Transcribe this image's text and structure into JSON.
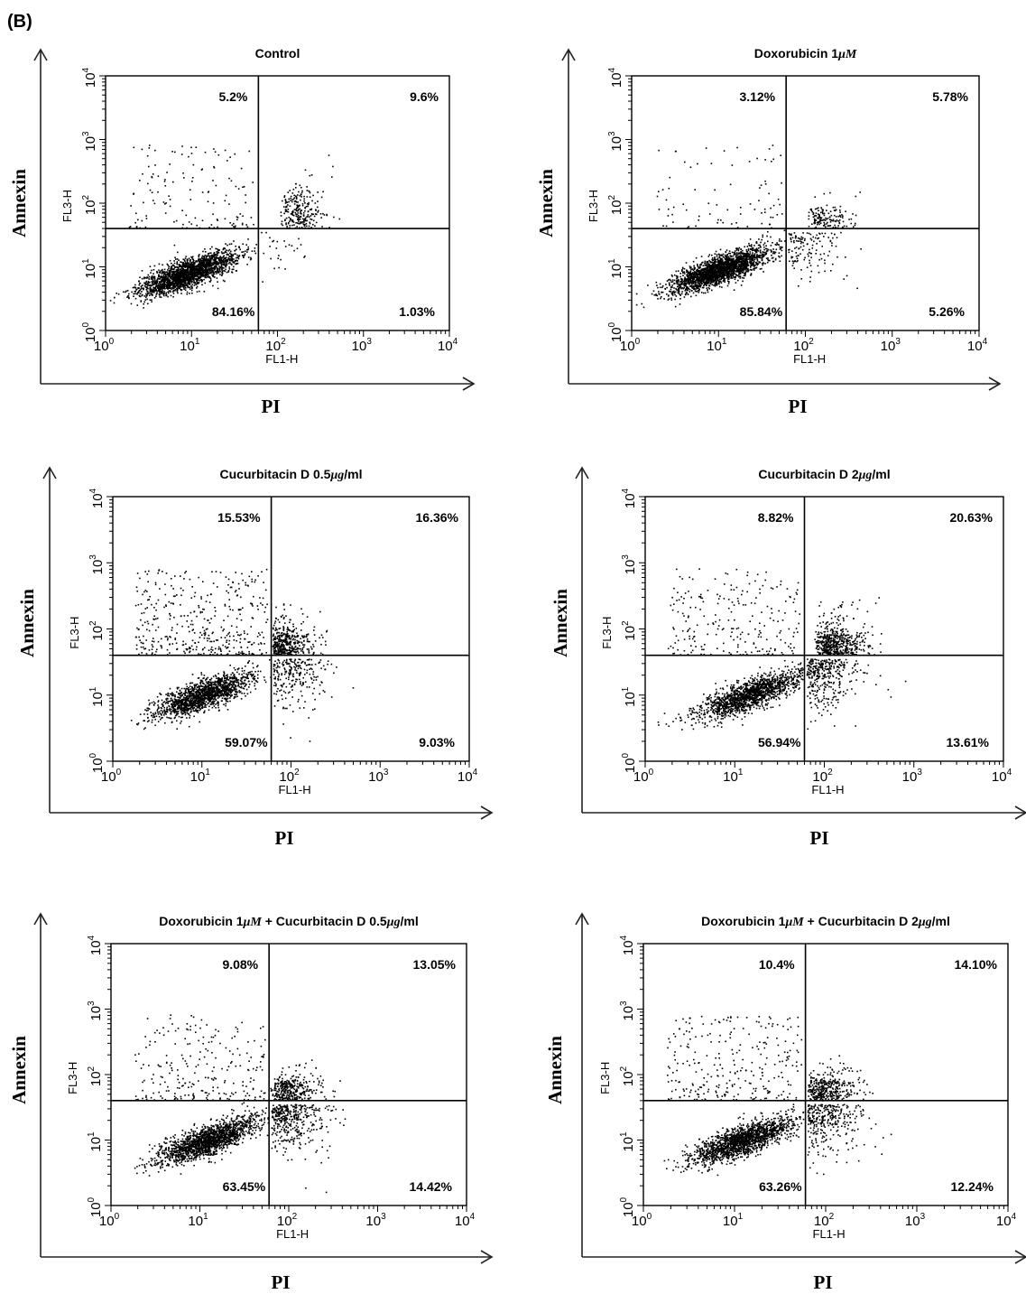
{
  "panel_label": "(B)",
  "chart_data": [
    {
      "type": "scatter",
      "title": "Control",
      "xlabel": "FL1-H",
      "ylabel": "FL3-H",
      "outer_xlabel": "PI",
      "outer_ylabel": "Annexin",
      "xscale": "log",
      "yscale": "log",
      "xlim": [
        1,
        10000
      ],
      "ylim": [
        1,
        10000
      ],
      "x_ticks": [
        "10^0",
        "10^1",
        "10^2",
        "10^3",
        "10^4"
      ],
      "y_ticks": [
        "10^0",
        "10^1",
        "10^2",
        "10^3",
        "10^4"
      ],
      "gate": {
        "x": 60,
        "y": 40
      },
      "quadrants": {
        "upper_left": "5.2%",
        "upper_right": "9.6%",
        "lower_left": "84.16%",
        "lower_right": "1.03%"
      },
      "cluster_center": {
        "x": 9,
        "y": 8
      },
      "upper_right_spread": {
        "x": 200,
        "y": 120
      }
    },
    {
      "type": "scatter",
      "title": "Doxorubicin 1μM",
      "xlabel": "FL1-H",
      "ylabel": "FL3-H",
      "outer_xlabel": "PI",
      "outer_ylabel": "Annexin",
      "xscale": "log",
      "yscale": "log",
      "xlim": [
        1,
        10000
      ],
      "ylim": [
        1,
        10000
      ],
      "x_ticks": [
        "10^0",
        "10^1",
        "10^2",
        "10^3",
        "10^4"
      ],
      "y_ticks": [
        "10^0",
        "10^1",
        "10^2",
        "10^3",
        "10^4"
      ],
      "gate": {
        "x": 60,
        "y": 40
      },
      "quadrants": {
        "upper_left": "3.12%",
        "upper_right": "5.78%",
        "lower_left": "85.84%",
        "lower_right": "5.26%"
      },
      "cluster_center": {
        "x": 10,
        "y": 9
      },
      "upper_right_spread": {
        "x": 200,
        "y": 60
      }
    },
    {
      "type": "scatter",
      "title": "Cucurbitacin D 0.5μg/ml",
      "xlabel": "FL1-H",
      "ylabel": "FL3-H",
      "outer_xlabel": "PI",
      "outer_ylabel": "Annexin",
      "xscale": "log",
      "yscale": "log",
      "xlim": [
        1,
        10000
      ],
      "ylim": [
        1,
        10000
      ],
      "x_ticks": [
        "10^0",
        "10^1",
        "10^2",
        "10^3",
        "10^4"
      ],
      "y_ticks": [
        "10^0",
        "10^1",
        "10^2",
        "10^3",
        "10^4"
      ],
      "gate": {
        "x": 60,
        "y": 40
      },
      "quadrants": {
        "upper_left": "15.53%",
        "upper_right": "16.36%",
        "lower_left": "59.07%",
        "lower_right": "9.03%"
      },
      "cluster_center": {
        "x": 10,
        "y": 10
      },
      "upper_right_spread": {
        "x": 100,
        "y": 80
      }
    },
    {
      "type": "scatter",
      "title": "Cucurbitacin D 2μg/ml",
      "xlabel": "FL1-H",
      "ylabel": "FL3-H",
      "outer_xlabel": "PI",
      "outer_ylabel": "Annexin",
      "xscale": "log",
      "yscale": "log",
      "xlim": [
        1,
        10000
      ],
      "ylim": [
        1,
        10000
      ],
      "x_ticks": [
        "10^0",
        "10^1",
        "10^2",
        "10^3",
        "10^4"
      ],
      "y_ticks": [
        "10^0",
        "10^1",
        "10^2",
        "10^3",
        "10^4"
      ],
      "gate": {
        "x": 60,
        "y": 40
      },
      "quadrants": {
        "upper_left": "8.82%",
        "upper_right": "20.63%",
        "lower_left": "56.94%",
        "lower_right": "13.61%"
      },
      "cluster_center": {
        "x": 14,
        "y": 10
      },
      "upper_right_spread": {
        "x": 150,
        "y": 80
      }
    },
    {
      "type": "scatter",
      "title": "Doxorubicin 1μM + Cucurbitacin D 0.5μg/ml",
      "xlabel": "FL1-H",
      "ylabel": "FL3-H",
      "outer_xlabel": "PI",
      "outer_ylabel": "Annexin",
      "xscale": "log",
      "yscale": "log",
      "xlim": [
        1,
        10000
      ],
      "ylim": [
        1,
        10000
      ],
      "x_ticks": [
        "10^0",
        "10^1",
        "10^2",
        "10^3",
        "10^4"
      ],
      "y_ticks": [
        "10^0",
        "10^1",
        "10^2",
        "10^3",
        "10^4"
      ],
      "gate": {
        "x": 60,
        "y": 40
      },
      "quadrants": {
        "upper_left": "9.08%",
        "upper_right": "13.05%",
        "lower_left": "63.45%",
        "lower_right": "14.42%"
      },
      "cluster_center": {
        "x": 12,
        "y": 10
      },
      "upper_right_spread": {
        "x": 120,
        "y": 60
      }
    },
    {
      "type": "scatter",
      "title": "Doxorubicin 1μM + Cucurbitacin D 2μg/ml",
      "xlabel": "FL1-H",
      "ylabel": "FL3-H",
      "outer_xlabel": "PI",
      "outer_ylabel": "Annexin",
      "xscale": "log",
      "yscale": "log",
      "xlim": [
        1,
        10000
      ],
      "ylim": [
        1,
        10000
      ],
      "x_ticks": [
        "10^0",
        "10^1",
        "10^2",
        "10^3",
        "10^4"
      ],
      "y_ticks": [
        "10^0",
        "10^1",
        "10^2",
        "10^3",
        "10^4"
      ],
      "gate": {
        "x": 60,
        "y": 40
      },
      "quadrants": {
        "upper_left": "10.4%",
        "upper_right": "14.10%",
        "lower_left": "63.26%",
        "lower_right": "12.24%"
      },
      "cluster_center": {
        "x": 12,
        "y": 10
      },
      "upper_right_spread": {
        "x": 120,
        "y": 70
      }
    }
  ]
}
